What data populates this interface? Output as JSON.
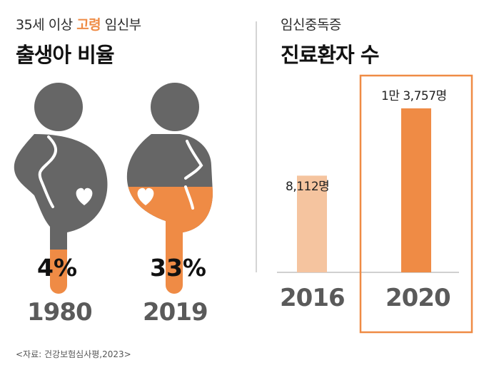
{
  "left": {
    "subtitle_pre": "35세 이상 ",
    "subtitle_hl": "고령",
    "subtitle_post": " 임신부",
    "title": "출생아 비율"
  },
  "right": {
    "subtitle": "임신중독증",
    "title": "진료환자 수"
  },
  "source": "<자료: 건강보험심사평,2023>",
  "colors": {
    "accent": "#ef8b45",
    "light": "#f5c49f",
    "gray": "#666666"
  },
  "chart_data": [
    {
      "type": "bar",
      "title": "출생아 비율",
      "categories": [
        "1980",
        "2019"
      ],
      "values": [
        4,
        33
      ],
      "value_labels": [
        "4%",
        "33%"
      ],
      "unit": "%"
    },
    {
      "type": "bar",
      "title": "진료환자 수",
      "categories": [
        "2016",
        "2020"
      ],
      "values": [
        8112,
        13757
      ],
      "value_labels": [
        "8,112명",
        "1만 3,757명"
      ],
      "highlighted": "2020"
    }
  ]
}
